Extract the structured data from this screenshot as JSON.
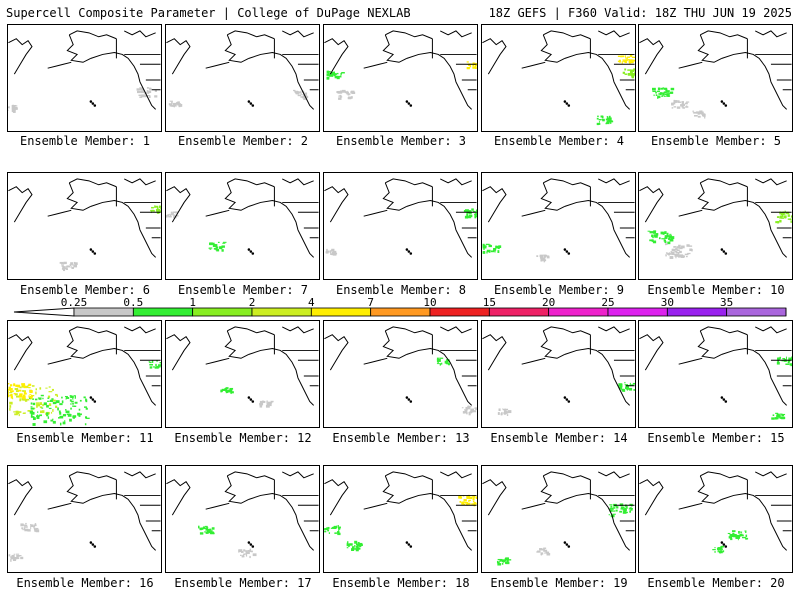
{
  "header": {
    "left": "Supercell Composite Parameter | College of DuPage NEXLAB",
    "right": "18Z GEFS | F360 Valid: 18Z THU JUN 19 2025"
  },
  "colorbar": {
    "ticks": [
      "0.25",
      "0.5",
      "1",
      "2",
      "4",
      "7",
      "10",
      "15",
      "20",
      "25",
      "30",
      "35"
    ],
    "colors": [
      "#c8c8c8",
      "#33ee33",
      "#88ee22",
      "#ccee22",
      "#ffee00",
      "#ff9922",
      "#ee2222",
      "#ee2266",
      "#ee22cc",
      "#dd22ee",
      "#9922ee",
      "#aa66dd",
      "#33eeee"
    ]
  },
  "panels": [
    {
      "label": "Ensemble Member: 1"
    },
    {
      "label": "Ensemble Member: 2"
    },
    {
      "label": "Ensemble Member: 3"
    },
    {
      "label": "Ensemble Member: 4"
    },
    {
      "label": "Ensemble Member: 5"
    },
    {
      "label": "Ensemble Member: 6"
    },
    {
      "label": "Ensemble Member: 7"
    },
    {
      "label": "Ensemble Member: 8"
    },
    {
      "label": "Ensemble Member: 9"
    },
    {
      "label": "Ensemble Member: 10"
    },
    {
      "label": "Ensemble Member: 11"
    },
    {
      "label": "Ensemble Member: 12"
    },
    {
      "label": "Ensemble Member: 13"
    },
    {
      "label": "Ensemble Member: 14"
    },
    {
      "label": "Ensemble Member: 15"
    },
    {
      "label": "Ensemble Member: 16"
    },
    {
      "label": "Ensemble Member: 17"
    },
    {
      "label": "Ensemble Member: 18"
    },
    {
      "label": "Ensemble Member: 19"
    },
    {
      "label": "Ensemble Member: 20"
    }
  ]
}
